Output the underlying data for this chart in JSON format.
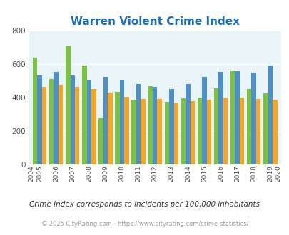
{
  "title": "Warren Violent Crime Index",
  "years": [
    2004,
    2005,
    2006,
    2007,
    2008,
    2009,
    2010,
    2011,
    2012,
    2013,
    2014,
    2015,
    2016,
    2017,
    2018,
    2019,
    2020
  ],
  "warren": [
    null,
    640,
    510,
    710,
    590,
    278,
    435,
    387,
    467,
    375,
    397,
    400,
    455,
    560,
    450,
    425,
    null
  ],
  "arkansas": [
    null,
    530,
    555,
    530,
    505,
    522,
    505,
    480,
    465,
    450,
    480,
    522,
    555,
    557,
    550,
    590,
    null
  ],
  "national": [
    null,
    465,
    475,
    465,
    450,
    428,
    403,
    390,
    392,
    368,
    380,
    385,
    400,
    400,
    390,
    385,
    null
  ],
  "warren_color": "#7dc142",
  "arkansas_color": "#4d8fcb",
  "national_color": "#f5a623",
  "bg_color": "#e8f4f8",
  "title_color": "#1a6eb5",
  "ylabel_max": 800,
  "yticks": [
    0,
    200,
    400,
    600,
    800
  ],
  "subtitle": "Crime Index corresponds to incidents per 100,000 inhabitants",
  "footer": "© 2025 CityRating.com - https://www.cityrating.com/crime-statistics/",
  "subtitle_color": "#333333",
  "footer_color": "#999999"
}
